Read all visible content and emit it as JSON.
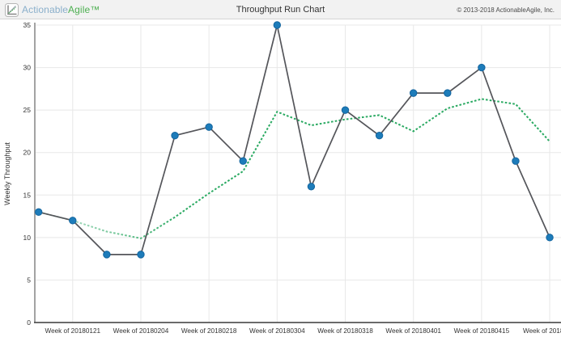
{
  "header": {
    "title": "Throughput Run Chart",
    "brand_first": "Actionable",
    "brand_second": "Agile™",
    "copyright": "© 2013-2018 ActionableAgile, Inc."
  },
  "chart_data": {
    "type": "line",
    "title": "Throughput Run Chart",
    "xlabel": "",
    "ylabel": "Weekly Throughput",
    "ylim": [
      0,
      35
    ],
    "y_ticks": [
      0,
      5,
      10,
      15,
      20,
      25,
      30,
      35
    ],
    "grid": true,
    "legend": "none",
    "x_tick_labels": [
      "Week of 20180121",
      "Week of 20180204",
      "Week of 20180218",
      "Week of 20180304",
      "Week of 20180318",
      "Week of 20180401",
      "Week of 20180415",
      "Week of 2018"
    ],
    "x_tick_point_indices": [
      1,
      3,
      5,
      7,
      9,
      11,
      13,
      15
    ],
    "last_label_truncated": true,
    "series": [
      {
        "name": "weekly-throughput",
        "style": "solid-line-with-dot-markers",
        "values": [
          13,
          12,
          8,
          8,
          22,
          23,
          19,
          35,
          16,
          25,
          22,
          27,
          27,
          30,
          19,
          10
        ]
      },
      {
        "name": "trend",
        "style": "dotted-line",
        "values": [
          13,
          12,
          10.7,
          9.9,
          12.4,
          15.2,
          17.8,
          24.8,
          23.2,
          23.9,
          24.4,
          22.5,
          25.2,
          26.3,
          25.7,
          21.3
        ]
      }
    ]
  },
  "colors": {
    "marker_blue": "#1d7cba",
    "marker_stroke": "#14659f",
    "line_gray": "#54555a",
    "trend_green": "#29a961",
    "trend_green_faded": "#cbe9da",
    "grid": "#e8e8e8",
    "axis_y": "#a3a3a3",
    "axis_x": "#3a3a3a",
    "tick_text": "#333333",
    "header_bg": "#f2f2f2",
    "brand_blue": "#8aafcb",
    "brand_green": "#4caf50"
  }
}
